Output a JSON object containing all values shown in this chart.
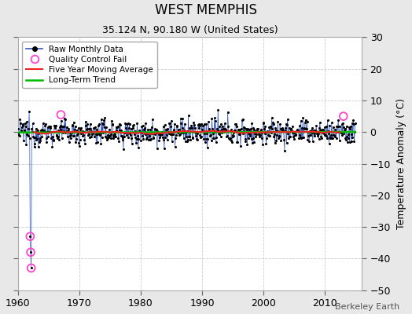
{
  "title": "WEST MEMPHIS",
  "subtitle": "35.124 N, 90.180 W (United States)",
  "ylabel": "Temperature Anomaly (°C)",
  "credit": "Berkeley Earth",
  "xlim": [
    1960,
    2016
  ],
  "ylim": [
    -50,
    30
  ],
  "yticks": [
    -50,
    -40,
    -30,
    -20,
    -10,
    0,
    10,
    20,
    30
  ],
  "xticks": [
    1960,
    1970,
    1980,
    1990,
    2000,
    2010
  ],
  "background_color": "#e8e8e8",
  "plot_bg_color": "#ffffff",
  "raw_line_color": "#3355bb",
  "raw_dot_color": "#000000",
  "moving_avg_color": "#ee2222",
  "trend_color": "#00bb00",
  "qc_fail_color": "#ff44cc",
  "seed": 12345,
  "n_months": 660,
  "start_year": 1960.0,
  "anomaly_std": 2.0,
  "spike_months": [
    24,
    25,
    26
  ],
  "spike_values": [
    -33,
    -38,
    -43
  ],
  "qc_fail_months": [
    24,
    25,
    26,
    84,
    636
  ],
  "qc_fail_values": [
    -33,
    -38,
    -43,
    5.5,
    5.0
  ]
}
